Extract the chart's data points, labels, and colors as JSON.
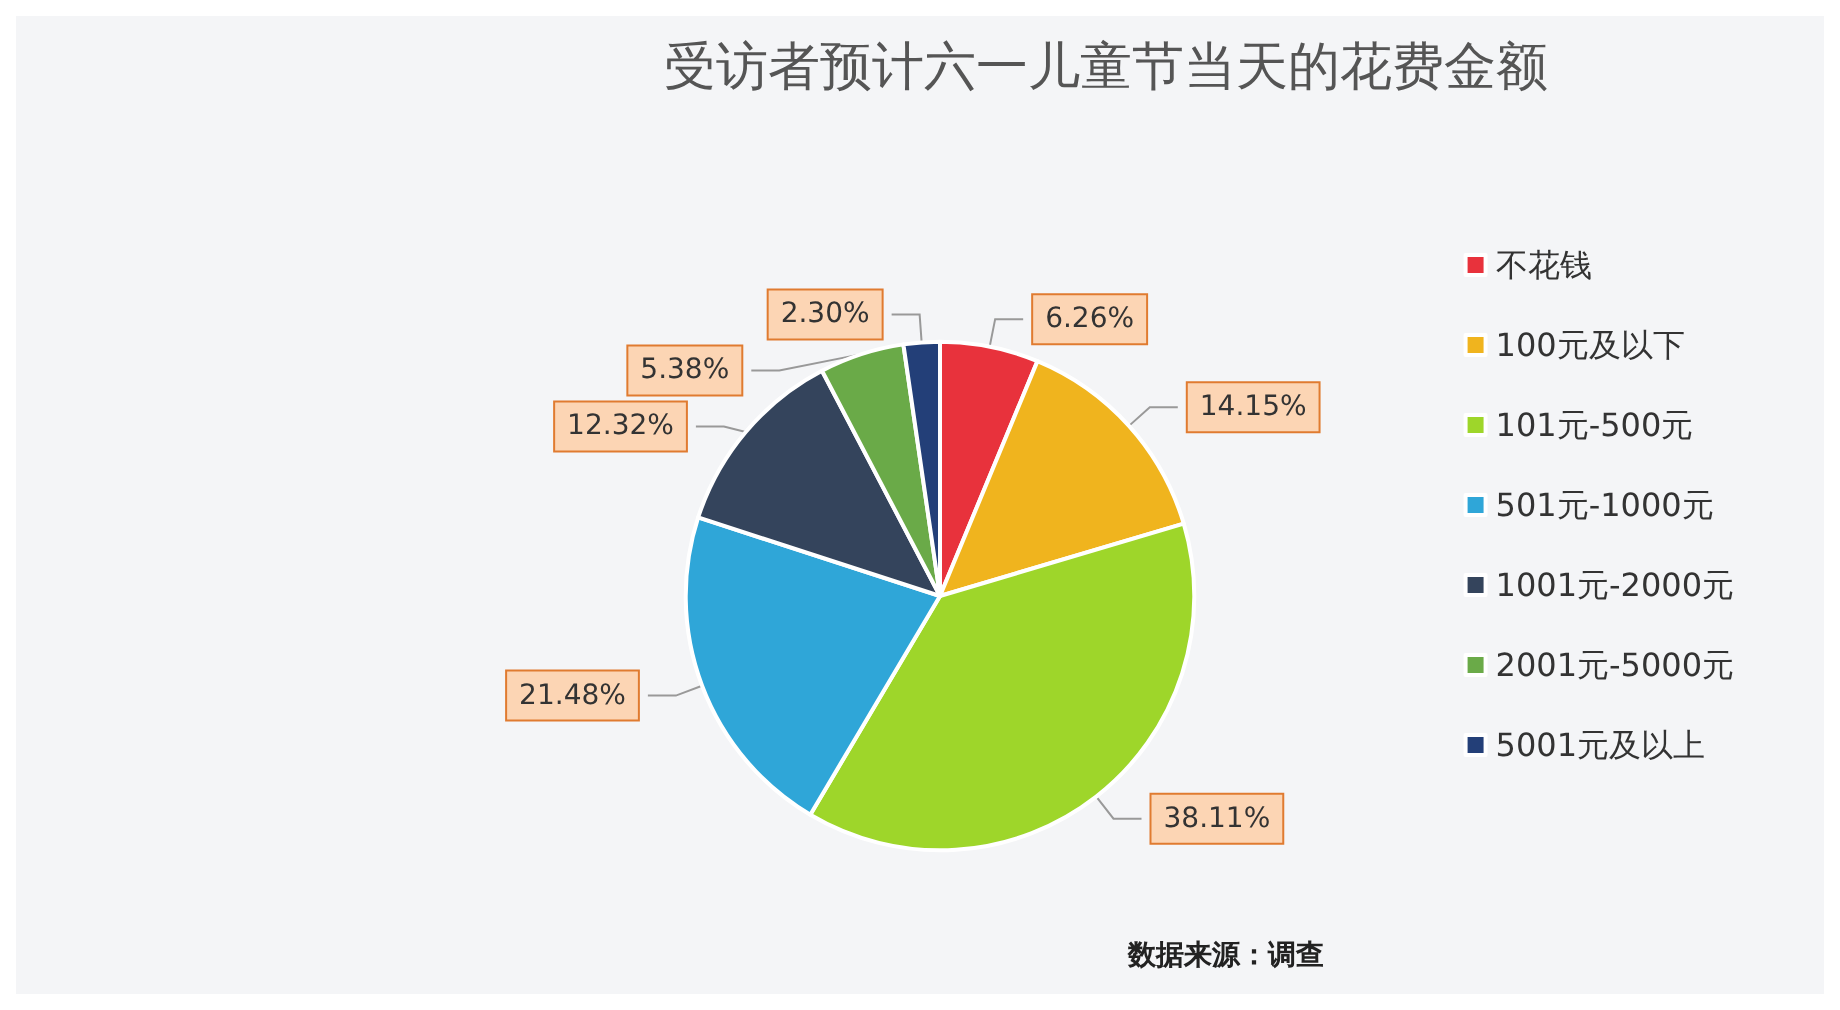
{
  "chart_data": {
    "type": "pie",
    "title": "受访者预计六一儿童节当天的花费金额",
    "categories": [
      "不花钱",
      "100元及以下",
      "101元-500元",
      "501元-1000元",
      "1001元-2000元",
      "2001元-5000元",
      "5001元及以上"
    ],
    "values": [
      6.26,
      14.15,
      38.11,
      21.48,
      12.32,
      5.38,
      2.3
    ],
    "value_labels": [
      "6.26%",
      "14.15%",
      "38.11%",
      "21.48%",
      "12.32%",
      "5.38%",
      "2.30%"
    ],
    "colors": [
      "#e8323c",
      "#f0b41e",
      "#9ed62a",
      "#2fa6d8",
      "#34445c",
      "#6aaa48",
      "#233f78"
    ],
    "legend": "right",
    "annotations": [
      "数据来源：调查"
    ]
  }
}
